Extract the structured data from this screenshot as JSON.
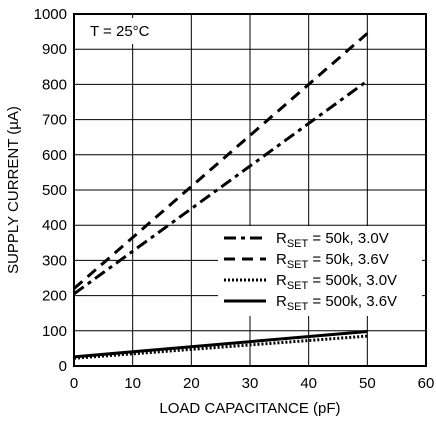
{
  "chart_data": {
    "type": "line",
    "title": "",
    "annotation": "T = 25°C",
    "xlabel": "LOAD CAPACITANCE (pF)",
    "ylabel": "SUPPLY CURRENT (µA)",
    "xlim": [
      0,
      60
    ],
    "ylim": [
      0,
      1000
    ],
    "x_ticks": [
      0,
      10,
      20,
      30,
      40,
      50,
      60
    ],
    "y_ticks": [
      0,
      100,
      200,
      300,
      400,
      500,
      600,
      700,
      800,
      900,
      1000
    ],
    "grid": true,
    "legend_position": "lower-right",
    "series": [
      {
        "name": "R_SET = 50k, 3.0V",
        "label_main": "R",
        "label_sub": "SET",
        "label_rest": " = 50k, 3.0V",
        "style": "dash-dot",
        "x": [
          0,
          50
        ],
        "y": [
          205,
          810
        ]
      },
      {
        "name": "R_SET = 50k, 3.6V",
        "label_main": "R",
        "label_sub": "SET",
        "label_rest": " = 50k, 3.6V",
        "style": "dashed",
        "x": [
          0,
          50
        ],
        "y": [
          220,
          945
        ]
      },
      {
        "name": "R_SET = 500k, 3.0V",
        "label_main": "R",
        "label_sub": "SET",
        "label_rest": " = 500k, 3.0V",
        "style": "dotted",
        "x": [
          0,
          50
        ],
        "y": [
          22,
          85
        ]
      },
      {
        "name": "R_SET = 500k, 3.6V",
        "label_main": "R",
        "label_sub": "SET",
        "label_rest": " = 500k, 3.6V",
        "style": "solid",
        "x": [
          0,
          50
        ],
        "y": [
          26,
          98
        ]
      }
    ]
  }
}
